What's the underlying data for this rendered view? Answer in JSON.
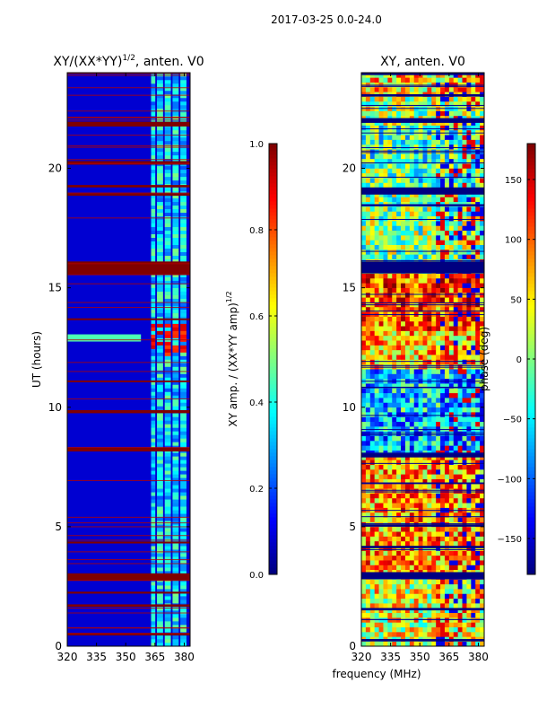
{
  "chart_data": {
    "type": "heatmap",
    "suptitle": "2017-03-25 0.0-24.0",
    "shared_xlabel": "frequency (MHz)",
    "panels": [
      {
        "id": "amp",
        "title": "XY/(XX*YY)",
        "title_exponent": "1/2",
        "title_suffix": ", anten. V0",
        "xlim": [
          320,
          383
        ],
        "ylim": [
          0,
          24
        ],
        "xticks": [
          320,
          335,
          350,
          365,
          380
        ],
        "yticks": [
          0,
          5,
          10,
          15,
          20
        ],
        "ylabel": "UT (hours)",
        "colorbar": {
          "label": "XY amp. / (XX*YY amp)",
          "label_exponent": "1/2",
          "range": [
            0.0,
            1.0
          ],
          "ticks": [
            0.0,
            0.2,
            0.4,
            0.6,
            0.8,
            1.0
          ],
          "tick_labels": [
            "0.0",
            "0.2",
            "0.4",
            "0.6",
            "0.8",
            "1.0"
          ]
        },
        "background_level": 0.08,
        "high_columns_mhz": [
          [
            363,
            365
          ],
          [
            366,
            369
          ],
          [
            370,
            373
          ],
          [
            374,
            377
          ],
          [
            378,
            381
          ]
        ],
        "high_column_level": 0.35,
        "saturated_rows_ut": [
          [
            15.55,
            16.1
          ],
          [
            2.75,
            3.05
          ],
          [
            21.75,
            21.95
          ],
          [
            20.15,
            20.3
          ],
          [
            8.15,
            8.3
          ],
          [
            9.75,
            9.88
          ],
          [
            19.2,
            19.3
          ],
          [
            18.85,
            18.95
          ],
          [
            0.45,
            0.55
          ],
          [
            1.65,
            1.75
          ],
          [
            2.2,
            2.28
          ],
          [
            4.3,
            4.38
          ],
          [
            13.65,
            13.72
          ],
          [
            11.05,
            11.12
          ]
        ],
        "hot_band_ut": [
          12.1,
          13.6
        ],
        "hot_band_level": 0.8
      },
      {
        "id": "phase",
        "title": "XY, anten. V0",
        "xlim": [
          320,
          383
        ],
        "ylim": [
          0,
          24
        ],
        "xticks": [
          320,
          335,
          350,
          365,
          380
        ],
        "yticks": [
          0,
          5,
          10,
          15,
          20
        ],
        "colorbar": {
          "label": "phase (deg)",
          "range": [
            -180,
            180
          ],
          "ticks": [
            -150,
            -100,
            -50,
            0,
            50,
            100,
            150
          ],
          "tick_labels": [
            "−150",
            "−100",
            "−50",
            "0",
            "50",
            "100",
            "150"
          ]
        },
        "flag_rows_ut": [
          [
            24.0,
            23.9
          ],
          [
            23.1,
            23.0
          ],
          [
            22.1,
            21.9
          ],
          [
            19.2,
            18.9
          ],
          [
            16.1,
            15.6
          ],
          [
            8.1,
            7.9
          ],
          [
            3.1,
            2.8
          ],
          [
            0.3,
            0.2
          ],
          [
            5.1,
            5.0
          ],
          [
            4.2,
            4.1
          ],
          [
            1.6,
            1.5
          ]
        ],
        "regions": [
          {
            "ut": [
              23.0,
              24.0
            ],
            "level": 0.65
          },
          {
            "ut": [
              21.9,
              23.0
            ],
            "level": 0.55
          },
          {
            "ut": [
              19.2,
              21.9
            ],
            "level": 0.45
          },
          {
            "ut": [
              15.6,
              19.2
            ],
            "level": 0.5
          },
          {
            "ut": [
              13.2,
              15.6
            ],
            "level": 0.78
          },
          {
            "ut": [
              11.6,
              13.2
            ],
            "level": 0.68
          },
          {
            "ut": [
              9.8,
              11.6
            ],
            "level": 0.35
          },
          {
            "ut": [
              8.0,
              9.8
            ],
            "level": 0.3
          },
          {
            "ut": [
              3.0,
              8.0
            ],
            "level": 0.72
          },
          {
            "ut": [
              0.0,
              3.0
            ],
            "level": 0.6
          }
        ]
      }
    ]
  }
}
